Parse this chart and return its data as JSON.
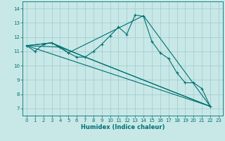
{
  "bg_color": "#c8e8e8",
  "line_color": "#007070",
  "grid_color": "#a0c8c8",
  "xlabel": "Humidex (Indice chaleur)",
  "ylim": [
    6.5,
    14.5
  ],
  "xlim": [
    -0.5,
    23.5
  ],
  "yticks": [
    7,
    8,
    9,
    10,
    11,
    12,
    13,
    14
  ],
  "xticks": [
    0,
    1,
    2,
    3,
    4,
    5,
    6,
    7,
    8,
    9,
    10,
    11,
    12,
    13,
    14,
    15,
    16,
    17,
    18,
    19,
    20,
    21,
    22,
    23
  ],
  "series": [
    [
      0,
      11.4
    ],
    [
      1,
      11.0
    ],
    [
      2,
      11.5
    ],
    [
      3,
      11.6
    ],
    [
      4,
      11.3
    ],
    [
      5,
      10.9
    ],
    [
      6,
      10.6
    ],
    [
      7,
      10.6
    ],
    [
      8,
      11.0
    ],
    [
      9,
      11.5
    ],
    [
      10,
      12.1
    ],
    [
      11,
      12.7
    ],
    [
      12,
      12.2
    ],
    [
      13,
      13.55
    ],
    [
      14,
      13.45
    ],
    [
      15,
      11.7
    ],
    [
      16,
      10.9
    ],
    [
      17,
      10.5
    ],
    [
      18,
      9.5
    ],
    [
      19,
      8.8
    ],
    [
      20,
      8.8
    ],
    [
      21,
      8.4
    ],
    [
      22,
      7.15
    ]
  ],
  "line_straight1": [
    [
      0,
      11.4
    ],
    [
      22,
      7.15
    ]
  ],
  "line_straight2": [
    [
      0,
      11.4
    ],
    [
      4,
      11.3
    ],
    [
      22,
      7.15
    ]
  ],
  "line_straight3": [
    [
      0,
      11.4
    ],
    [
      3,
      11.6
    ],
    [
      7,
      10.6
    ],
    [
      22,
      7.15
    ]
  ],
  "line_straight4": [
    [
      0,
      11.4
    ],
    [
      3,
      11.6
    ],
    [
      5,
      10.9
    ],
    [
      14,
      13.5
    ],
    [
      22,
      7.15
    ]
  ]
}
